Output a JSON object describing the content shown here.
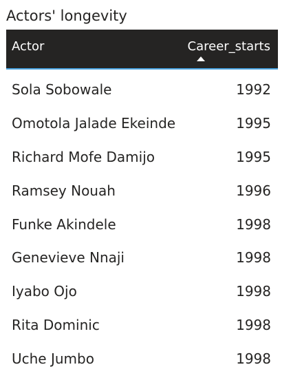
{
  "visual": {
    "title": "Actors' longevity"
  },
  "table": {
    "columns": {
      "actor": "Actor",
      "career_starts": "Career_starts"
    },
    "sort": {
      "column": "career_starts",
      "direction": "ascending",
      "icon": "sort-ascending-icon"
    },
    "rows": [
      {
        "actor": "Sola Sobowale",
        "career_starts": "1992"
      },
      {
        "actor": "Omotola Jalade Ekeinde",
        "career_starts": "1995"
      },
      {
        "actor": "Richard Mofe Damijo",
        "career_starts": "1995"
      },
      {
        "actor": "Ramsey Nouah",
        "career_starts": "1996"
      },
      {
        "actor": "Funke Akindele",
        "career_starts": "1998"
      },
      {
        "actor": "Genevieve Nnaji",
        "career_starts": "1998"
      },
      {
        "actor": "Iyabo Ojo",
        "career_starts": "1998"
      },
      {
        "actor": "Rita Dominic",
        "career_starts": "1998"
      },
      {
        "actor": "Uche Jumbo",
        "career_starts": "1998"
      }
    ]
  },
  "colors": {
    "header_background": "#252423",
    "header_text": "#ffffff",
    "header_underline": "#4aa3df",
    "body_text": "#252423",
    "background": "#ffffff"
  }
}
